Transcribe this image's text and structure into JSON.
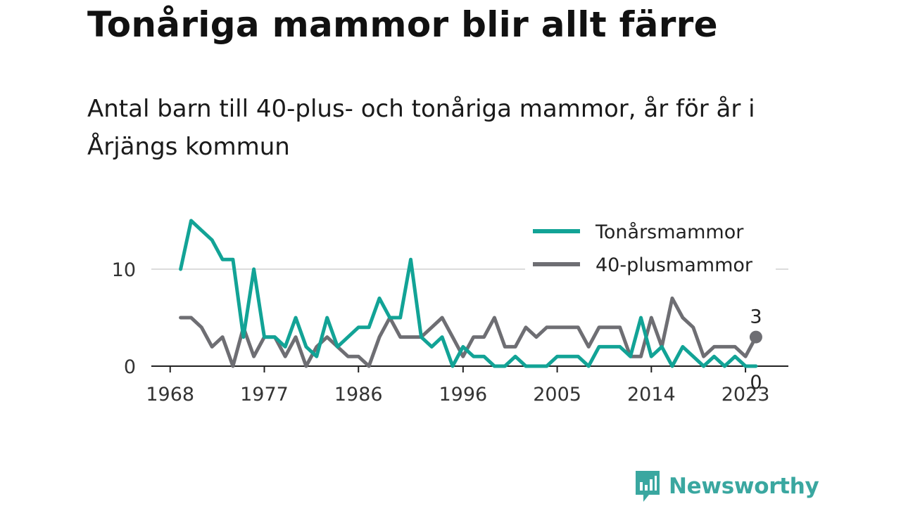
{
  "title": "Tonåriga mammor blir allt färre",
  "subtitle": "Antal barn till 40-plus- och tonåriga mammor, år för år i Årjängs kommun",
  "brand": {
    "name": "Newsworthy",
    "icon": "newsworthy-logo-icon"
  },
  "colors": {
    "teen": "#12a396",
    "forty": "#6e6e73",
    "axis": "#222222",
    "grid": "#dcdcdc"
  },
  "chart_data": {
    "type": "line",
    "x": [
      1969,
      1970,
      1971,
      1972,
      1973,
      1974,
      1975,
      1976,
      1977,
      1978,
      1979,
      1980,
      1981,
      1982,
      1983,
      1984,
      1985,
      1986,
      1987,
      1988,
      1989,
      1990,
      1991,
      1992,
      1993,
      1994,
      1995,
      1996,
      1997,
      1998,
      1999,
      2000,
      2001,
      2002,
      2003,
      2004,
      2005,
      2006,
      2007,
      2008,
      2009,
      2010,
      2011,
      2012,
      2013,
      2014,
      2015,
      2016,
      2017,
      2018,
      2019,
      2020,
      2021,
      2022,
      2023,
      2024
    ],
    "series": [
      {
        "name": "Tonårsmammor",
        "color": "#12a396",
        "values": [
          10,
          15,
          14,
          13,
          11,
          11,
          3,
          10,
          3,
          3,
          2,
          5,
          2,
          1,
          5,
          2,
          3,
          4,
          4,
          7,
          5,
          5,
          11,
          3,
          2,
          3,
          0,
          2,
          1,
          1,
          0,
          0,
          1,
          0,
          0,
          0,
          1,
          1,
          1,
          0,
          2,
          2,
          2,
          1,
          5,
          1,
          2,
          0,
          2,
          1,
          0,
          1,
          0,
          1,
          0,
          0
        ]
      },
      {
        "name": "40-plusmammor",
        "color": "#6e6e73",
        "values": [
          5,
          5,
          4,
          2,
          3,
          0,
          4,
          1,
          3,
          3,
          1,
          3,
          0,
          2,
          3,
          2,
          1,
          1,
          0,
          3,
          5,
          3,
          3,
          3,
          4,
          5,
          3,
          1,
          3,
          3,
          5,
          2,
          2,
          4,
          3,
          4,
          4,
          4,
          4,
          2,
          4,
          4,
          4,
          1,
          1,
          5,
          2,
          7,
          5,
          4,
          1,
          2,
          2,
          2,
          1,
          3
        ]
      }
    ],
    "x_ticks": [
      "1968",
      "1977",
      "1986",
      "1996",
      "2005",
      "2014",
      "2023"
    ],
    "y_ticks": [
      "0",
      "10"
    ],
    "ylim": [
      0,
      15
    ],
    "grid": "horizontal",
    "legend_position": "top-right",
    "end_labels": {
      "Tonårsmammor": "0",
      "40-plusmammor": "3"
    }
  }
}
